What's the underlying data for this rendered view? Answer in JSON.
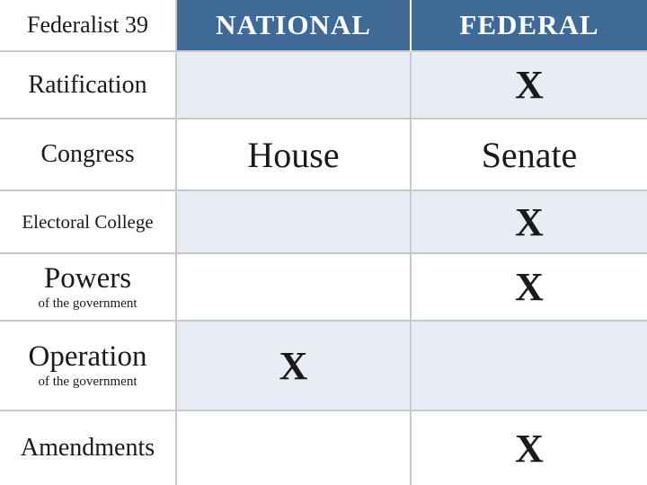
{
  "colors": {
    "header_bg": "#3f6a97",
    "header_text": "#ffffff",
    "row_even_bg": "#e8ecf3",
    "row_odd_bg": "#ffffff",
    "border": "#c9c9c9",
    "text": "#1a1a1a"
  },
  "table": {
    "corner_label": "Federalist 39",
    "columns": [
      "NATIONAL",
      "FEDERAL"
    ],
    "rows": [
      {
        "label": "Ratification",
        "sublabel": "",
        "national": "",
        "federal": "X"
      },
      {
        "label": "Congress",
        "sublabel": "",
        "national": "House",
        "federal": "Senate"
      },
      {
        "label": "Electoral College",
        "sublabel": "",
        "national": "",
        "federal": "X"
      },
      {
        "label": "Powers",
        "sublabel": "of the government",
        "national": "",
        "federal": "X"
      },
      {
        "label": "Operation",
        "sublabel": "of the government",
        "national": "X",
        "federal": ""
      },
      {
        "label": "Amendments",
        "sublabel": "",
        "national": "",
        "federal": "X"
      }
    ]
  },
  "style": {
    "x_mark": "X",
    "header_fontsize": 31,
    "label_fontsize": 28,
    "cell_fontsize": 40,
    "x_fontsize": 44
  }
}
